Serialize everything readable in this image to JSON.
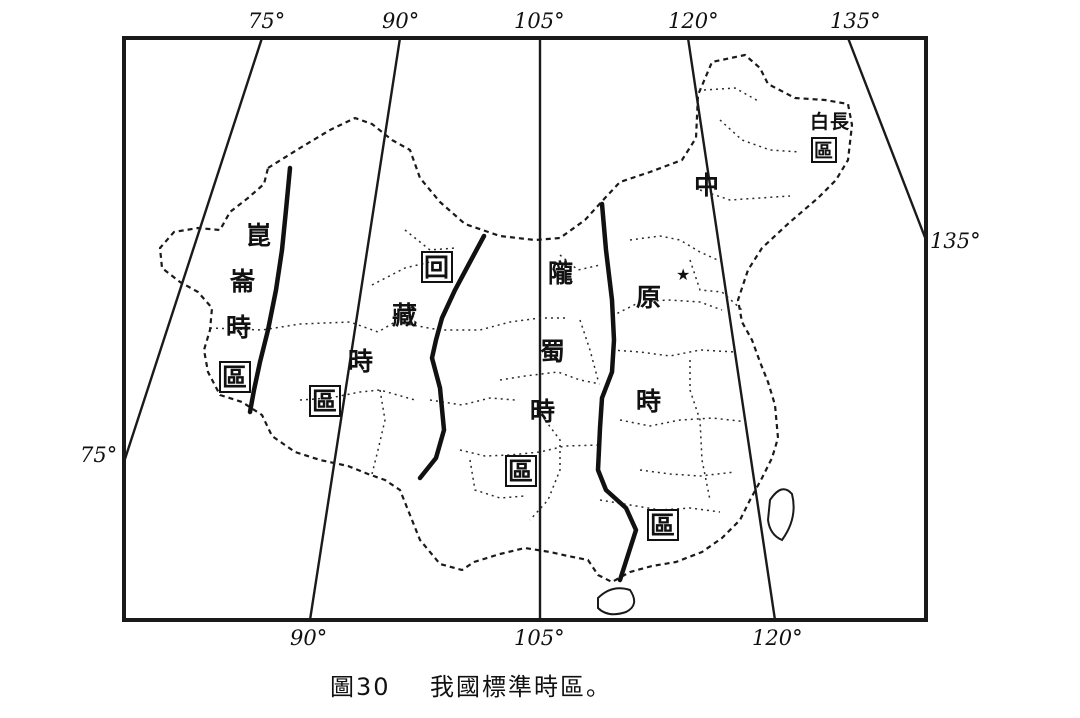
{
  "map": {
    "caption_number": "圖30",
    "caption_text": "我國標準時區。",
    "longitude_labels": {
      "top": [
        "75°",
        "90°",
        "105°",
        "120°",
        "135°"
      ],
      "bottom": [
        "90°",
        "105°",
        "120°"
      ],
      "left": "75°",
      "right": "135°"
    },
    "zones": [
      {
        "name": "崑崙時區",
        "chars": [
          "崑",
          "崙",
          "時",
          "區"
        ]
      },
      {
        "name": "回藏時區",
        "chars": [
          "回",
          "藏",
          "時",
          "區"
        ]
      },
      {
        "name": "隴蜀時區",
        "chars": [
          "隴",
          "蜀",
          "時",
          "區"
        ]
      },
      {
        "name": "中原時區",
        "chars": [
          "中",
          "原",
          "時",
          "區"
        ]
      },
      {
        "name": "長白區",
        "chars": [
          "長",
          "白",
          "區"
        ]
      }
    ]
  }
}
